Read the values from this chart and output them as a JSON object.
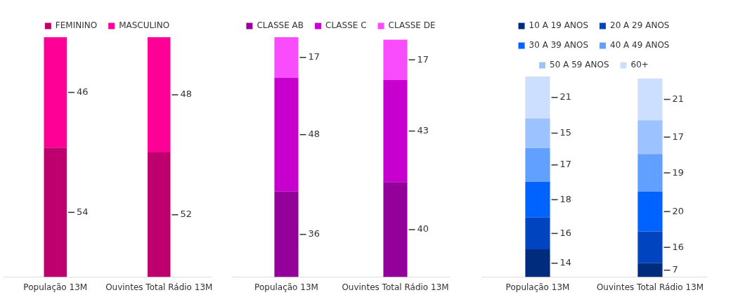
{
  "chart_data": [
    {
      "type": "bar",
      "stacked": true,
      "data_labels": true,
      "legend": "top",
      "categories": [
        "População 13M",
        "Ouvintes Total Rádio 13M"
      ],
      "series": [
        {
          "name": "FEMININO",
          "color": "#be006e",
          "values": [
            54,
            52
          ]
        },
        {
          "name": "MASCULINO",
          "color": "#ff0096",
          "values": [
            46,
            48
          ]
        }
      ]
    },
    {
      "type": "bar",
      "stacked": true,
      "data_labels": true,
      "legend": "top",
      "categories": [
        "População 13M",
        "Ouvintes Total Rádio 13M"
      ],
      "series": [
        {
          "name": "CLASSE AB",
          "color": "#94009a",
          "values": [
            36,
            40
          ]
        },
        {
          "name": "CLASSE C",
          "color": "#c800cf",
          "values": [
            48,
            43
          ]
        },
        {
          "name": "CLASSE DE",
          "color": "#f94cfd",
          "values": [
            17,
            17
          ]
        }
      ]
    },
    {
      "type": "bar",
      "stacked": true,
      "data_labels": true,
      "legend": "top",
      "categories": [
        "População 13M",
        "Ouvintes Total Rádio 13M"
      ],
      "series": [
        {
          "name": "10 A 19 ANOS",
          "color": "#002c7d",
          "values": [
            14,
            7
          ]
        },
        {
          "name": "20 A 29 ANOS",
          "color": "#0044bf",
          "values": [
            16,
            16
          ]
        },
        {
          "name": "30 A 39 ANOS",
          "color": "#0062ff",
          "values": [
            18,
            20
          ]
        },
        {
          "name": "40 A 49 ANOS",
          "color": "#62a0ff",
          "values": [
            17,
            19
          ]
        },
        {
          "name": "50 A 59 ANOS",
          "color": "#9cc2ff",
          "values": [
            15,
            17
          ]
        },
        {
          "name": "60+",
          "color": "#cddfff",
          "values": [
            21,
            21
          ]
        }
      ]
    }
  ]
}
